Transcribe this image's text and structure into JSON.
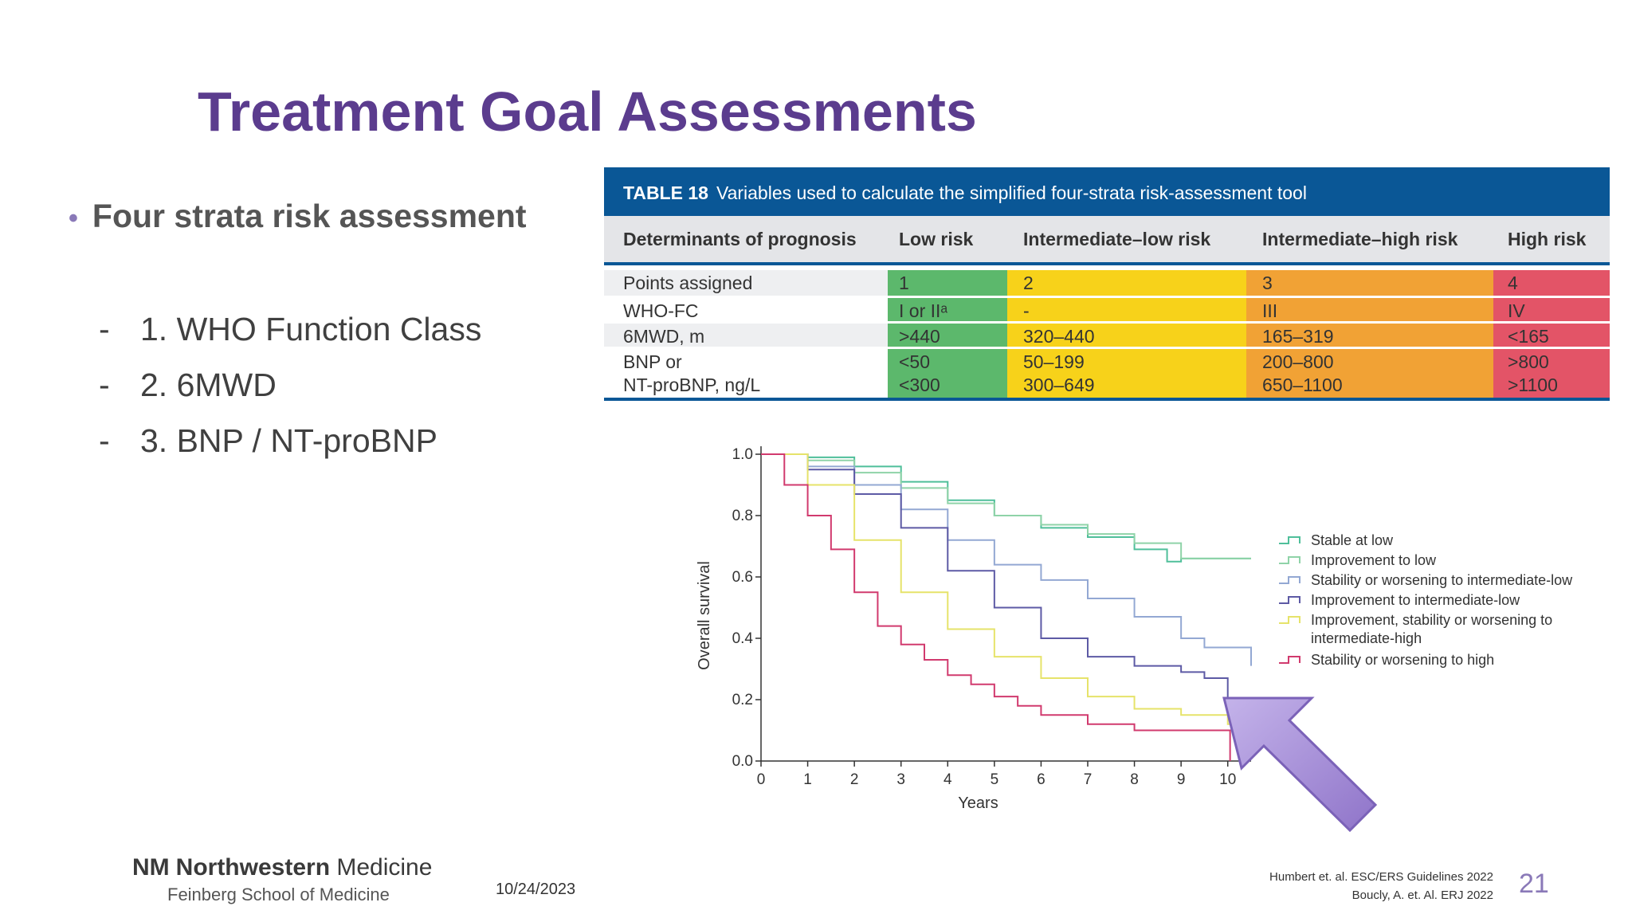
{
  "slide": {
    "title": "Treatment Goal Assessments",
    "bullet": "Four strata risk assessment",
    "subitems": [
      {
        "dash": "-",
        "text": "1. WHO Function Class"
      },
      {
        "dash": "-",
        "text": "2. 6MWD"
      },
      {
        "dash": "-",
        "text": "3. BNP / NT-proBNP"
      }
    ]
  },
  "table": {
    "label": "TABLE 18",
    "caption": "Variables used to calculate the simplified four-strata risk-assessment tool",
    "columns": [
      "Determinants of prognosis",
      "Low risk",
      "Intermediate–low risk",
      "Intermediate–high risk",
      "High risk"
    ],
    "rows": [
      [
        "Points assigned",
        "1",
        "2",
        "3",
        "4"
      ],
      [
        "WHO-FC",
        "I or IIᵃ",
        "-",
        "III",
        "IV"
      ],
      [
        "6MWD, m",
        ">440",
        "320–440",
        "165–319",
        "<165"
      ],
      [
        "BNP or",
        "<50",
        "50–199",
        "200–800",
        ">800"
      ],
      [
        "NT-proBNP, ng/L",
        "<300",
        "300–649",
        "650–1100",
        ">1100"
      ]
    ],
    "colors": {
      "header_bg": "#0a5796",
      "low": "#5cb86c",
      "int_low": "#f7d21a",
      "int_high": "#f1a235",
      "high": "#e35467"
    }
  },
  "chart_data": {
    "type": "line",
    "xlabel": "Years",
    "ylabel": "Overall survival",
    "xlim": [
      0,
      10.5
    ],
    "ylim": [
      0,
      1.0
    ],
    "xticks": [
      0,
      1,
      2,
      3,
      4,
      5,
      6,
      7,
      8,
      9,
      10
    ],
    "yticks": [
      "0.0",
      "0.2",
      "0.4",
      "0.6",
      "0.8",
      "1.0"
    ],
    "legend_position": "right",
    "series": [
      {
        "name": "Stable at low",
        "color": "#4fbf9a",
        "x": [
          0,
          1,
          2,
          3,
          4,
          5,
          6,
          7,
          8,
          8.7,
          9,
          10.5
        ],
        "y": [
          1.0,
          0.99,
          0.96,
          0.91,
          0.85,
          0.8,
          0.76,
          0.73,
          0.69,
          0.65,
          0.66,
          0.66
        ]
      },
      {
        "name": "Improvement to low",
        "color": "#8fd3a8",
        "x": [
          0,
          1,
          2,
          3,
          4,
          5,
          6,
          7,
          8,
          9,
          10.5
        ],
        "y": [
          1.0,
          0.98,
          0.94,
          0.89,
          0.84,
          0.8,
          0.77,
          0.74,
          0.71,
          0.66,
          0.66
        ]
      },
      {
        "name": "Stability or worsening to intermediate-low",
        "color": "#93a8d3",
        "x": [
          0,
          1,
          2,
          3,
          4,
          5,
          6,
          7,
          8,
          9,
          9.5,
          10,
          10.5
        ],
        "y": [
          1.0,
          0.96,
          0.9,
          0.82,
          0.72,
          0.64,
          0.59,
          0.53,
          0.47,
          0.4,
          0.37,
          0.37,
          0.31
        ]
      },
      {
        "name": "Improvement to intermediate-low",
        "color": "#5d5aa5",
        "x": [
          0,
          1,
          2,
          3,
          4,
          5,
          6,
          7,
          8,
          9,
          9.5,
          10,
          10.5
        ],
        "y": [
          1.0,
          0.95,
          0.87,
          0.76,
          0.62,
          0.5,
          0.4,
          0.34,
          0.31,
          0.29,
          0.27,
          0.2,
          0.2
        ]
      },
      {
        "name": "Improvement, stability or worsening to intermediate-high",
        "color": "#e6e36a",
        "x": [
          0,
          1,
          2,
          3,
          4,
          5,
          6,
          7,
          8,
          9,
          10,
          10.5
        ],
        "y": [
          1.0,
          0.9,
          0.72,
          0.55,
          0.43,
          0.34,
          0.27,
          0.21,
          0.17,
          0.15,
          0.12,
          0.12
        ]
      },
      {
        "name": "Stability or worsening to high",
        "color": "#d13a6e",
        "x": [
          0,
          0.5,
          1,
          1.5,
          2,
          2.5,
          3,
          3.5,
          4,
          4.5,
          5,
          5.5,
          6,
          7,
          8,
          9,
          10,
          10.05
        ],
        "y": [
          1.0,
          0.9,
          0.8,
          0.69,
          0.55,
          0.44,
          0.38,
          0.33,
          0.28,
          0.25,
          0.21,
          0.18,
          0.15,
          0.12,
          0.1,
          0.1,
          0.1,
          0.0
        ]
      }
    ]
  },
  "footer": {
    "logo_main_bold": "Northwestern",
    "logo_main_light": "Medicine",
    "logo_sub": "Feinberg School of Medicine",
    "date": "10/24/2023",
    "ref1": "Humbert et. al. ESC/ERS Guidelines 2022",
    "ref2": "Boucly, A. et. Al. ERJ 2022",
    "page": "21"
  }
}
